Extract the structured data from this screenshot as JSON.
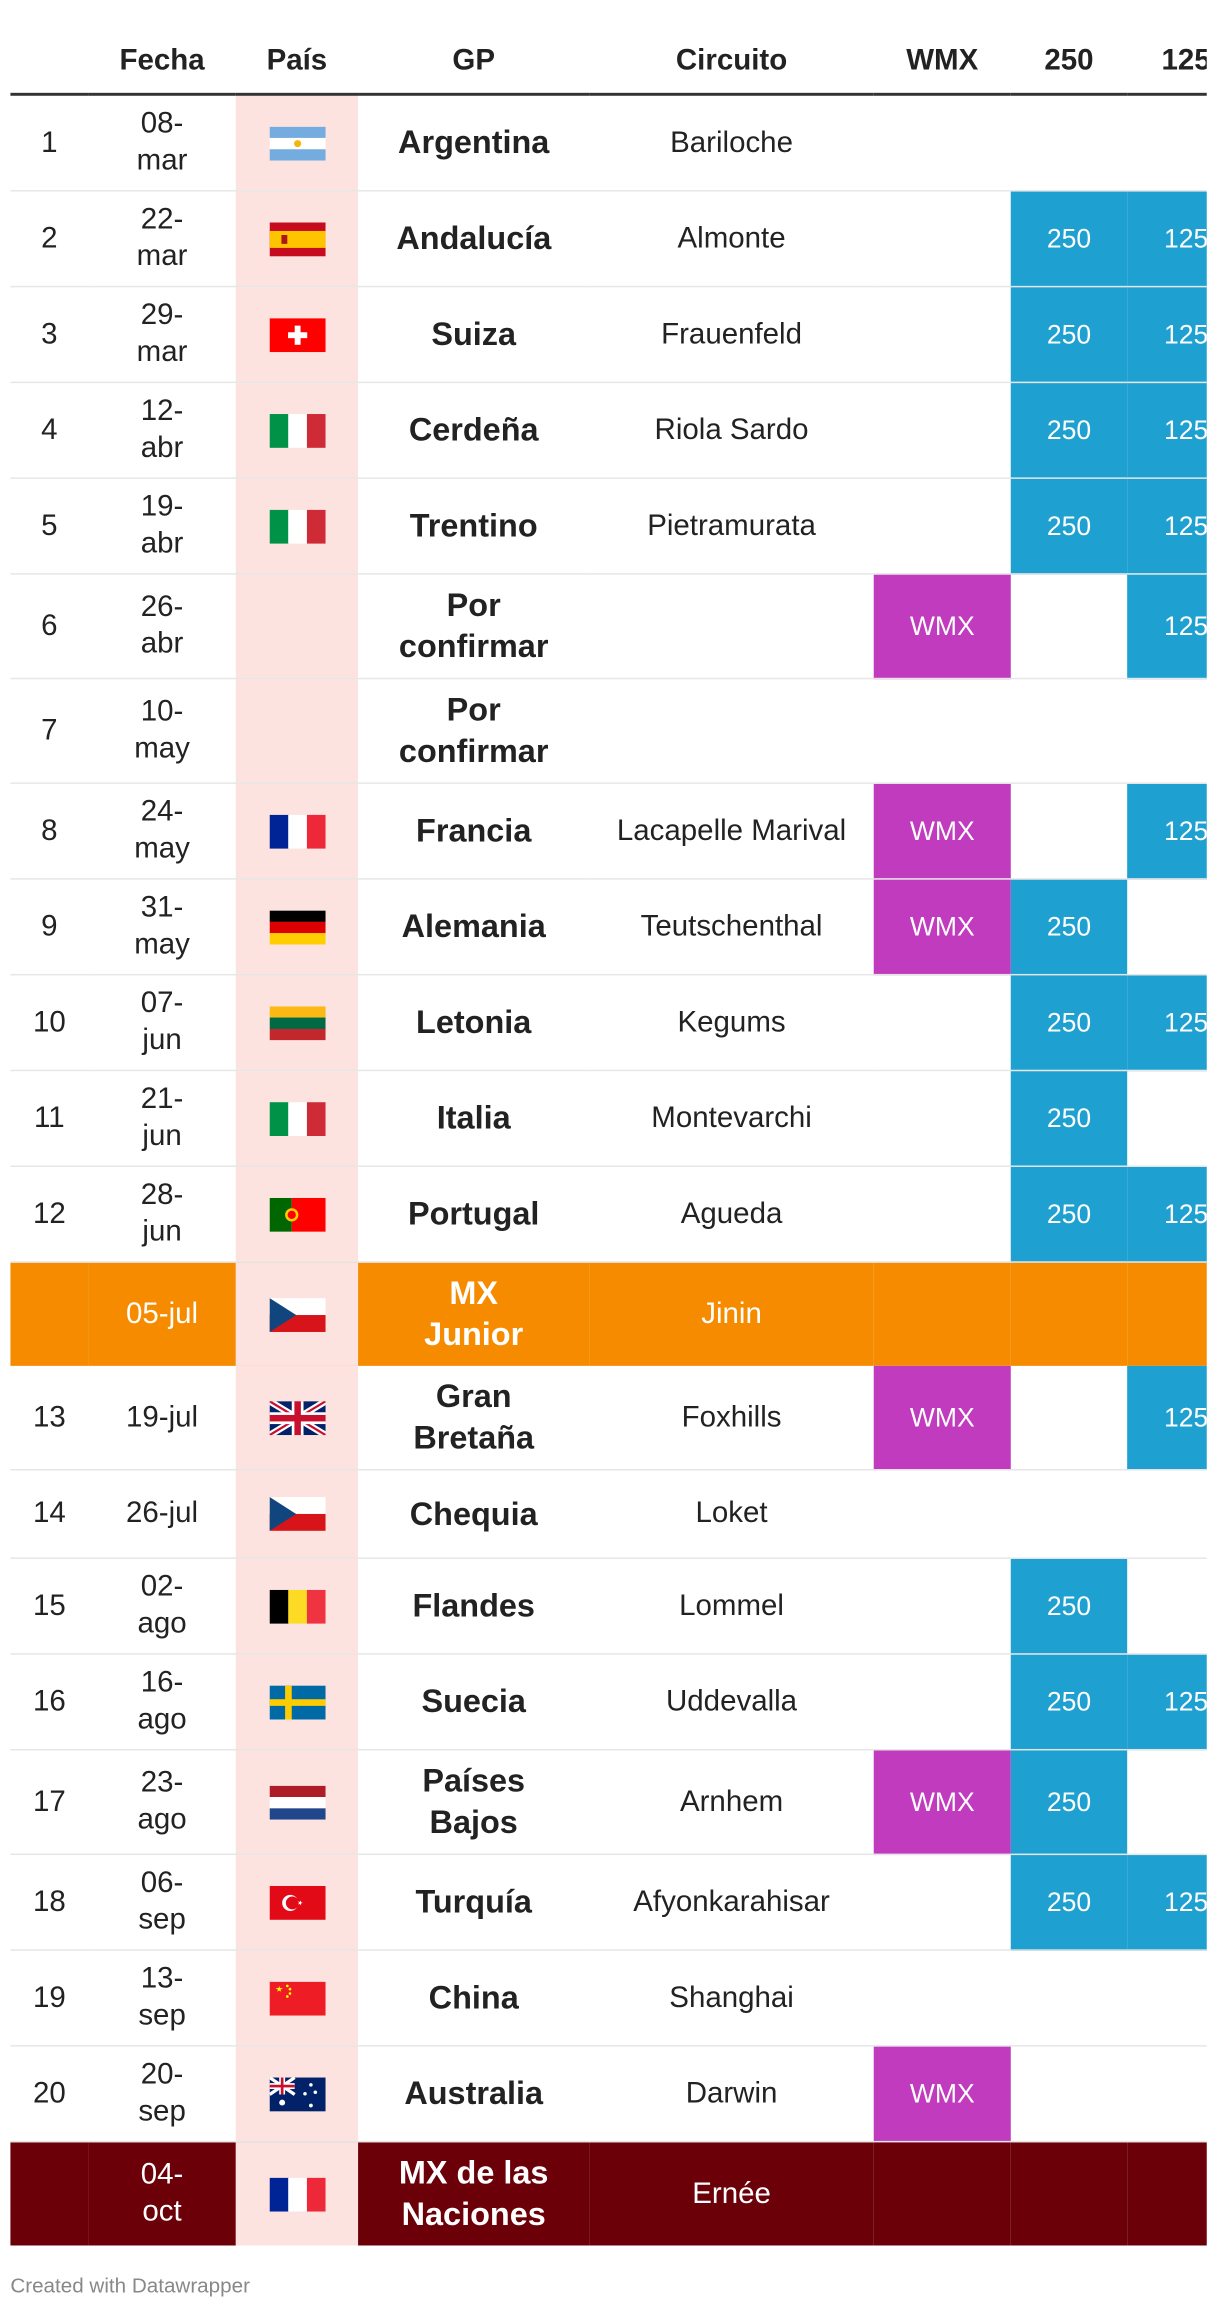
{
  "table": {
    "header": [
      "Fecha",
      "País",
      "GP",
      "Circuito",
      "WMX",
      "250",
      "125"
    ],
    "rows": [
      {
        "number": 1,
        "date": "08-mar",
        "gp": "Argentina",
        "circuit": "Bariloche",
        "wmx": null,
        "c250": null,
        "c125": null
      },
      {
        "number": 2,
        "date": "22-mar",
        "gp": "Andalucía",
        "circuit": "Almonte",
        "wmx": null,
        "c250": "250",
        "c125": "125"
      },
      {
        "number": 3,
        "date": "29-mar",
        "gp": "Suiza",
        "circuit": "Frauenfeld",
        "wmx": null,
        "c250": "250",
        "c125": "125"
      },
      {
        "number": 4,
        "date": "12-abr",
        "gp": "Cerdeña",
        "circuit": "Riola Sardo",
        "wmx": null,
        "c250": "250",
        "c125": "125"
      },
      {
        "number": 5,
        "date": "19-abr",
        "gp": "Trentino",
        "circuit": "Pietramurata",
        "wmx": null,
        "c250": "250",
        "c125": "125"
      },
      {
        "number": 6,
        "date": "26-abr",
        "gp": "Por confirmar",
        "circuit": null,
        "wmx": "WMX",
        "c250": null,
        "c125": "125"
      },
      {
        "number": 7,
        "date": "10-may",
        "gp": "Por confirmar",
        "circuit": null,
        "wmx": null,
        "c250": null,
        "c125": null
      },
      {
        "number": 8,
        "date": "24-may",
        "gp": "Francia",
        "circuit": "Lacapelle Marival",
        "wmx": "WMX",
        "c250": null,
        "c125": "125"
      },
      {
        "number": 9,
        "date": "31-may",
        "gp": "Alemania",
        "circuit": "Teutschenthal",
        "wmx": "WMX",
        "c250": "250",
        "c125": null
      },
      {
        "number": 10,
        "date": "07-jun",
        "gp": "Letonia",
        "circuit": "Kegums",
        "wmx": null,
        "c250": "250",
        "c125": "125"
      },
      {
        "number": 11,
        "date": "21-jun",
        "gp": "Italia",
        "circuit": "Montevarchi",
        "wmx": null,
        "c250": "250",
        "c125": null
      },
      {
        "number": 12,
        "date": "28-jun",
        "gp": "Portugal",
        "circuit": "Agueda",
        "wmx": null,
        "c250": "250",
        "c125": "125"
      },
      {
        "date": "05-jul",
        "gp": "MX Junior",
        "circuit": "Jinin",
        "wmx": null,
        "c250": null,
        "c125": null,
        "color": "#f68b00"
      },
      {
        "number": 13,
        "date": "19-jul",
        "gp": "Gran Bretaña",
        "circuit": "Foxhills",
        "wmx": "WMX",
        "c250": null,
        "c125": "125"
      },
      {
        "number": 14,
        "date": "26-jul",
        "gp": "Chequia",
        "circuit": "Loket",
        "wmx": null,
        "c250": null,
        "c125": null
      },
      {
        "number": 15,
        "date": "02-ago",
        "gp": "Flandes",
        "circuit": "Lommel",
        "wmx": null,
        "c250": "250",
        "c125": null
      },
      {
        "number": 16,
        "date": "16-ago",
        "gp": "Suecia",
        "circuit": "Uddevalla",
        "wmx": null,
        "c250": "250",
        "c125": "125"
      },
      {
        "number": 17,
        "date": "23-ago",
        "gp": "Países Bajos",
        "circuit": "Arnhem",
        "wmx": "WMX",
        "c250": "250",
        "c125": null
      },
      {
        "number": 18,
        "date": "06-sep",
        "gp": "Turquía",
        "circuit": "Afyonkarahisar",
        "wmx": null,
        "c250": "250",
        "c125": "125"
      },
      {
        "number": 19,
        "date": "13-sep",
        "gp": "China",
        "circuit": "Shanghai",
        "wmx": null,
        "c250": null,
        "c125": null
      },
      {
        "number": 20,
        "date": "20-sep",
        "gp": "Australia",
        "circuit": "Darwin",
        "wmx": "WMX",
        "c250": null,
        "c125": null
      },
      {
        "date": "04-oct",
        "gp": "MX de las Naciones",
        "circuit": "Ernée",
        "wmx": null,
        "c250": null,
        "c125": null,
        "color": "#6b0009"
      }
    ]
  },
  "footer": "Created with Datawrapper"
}
